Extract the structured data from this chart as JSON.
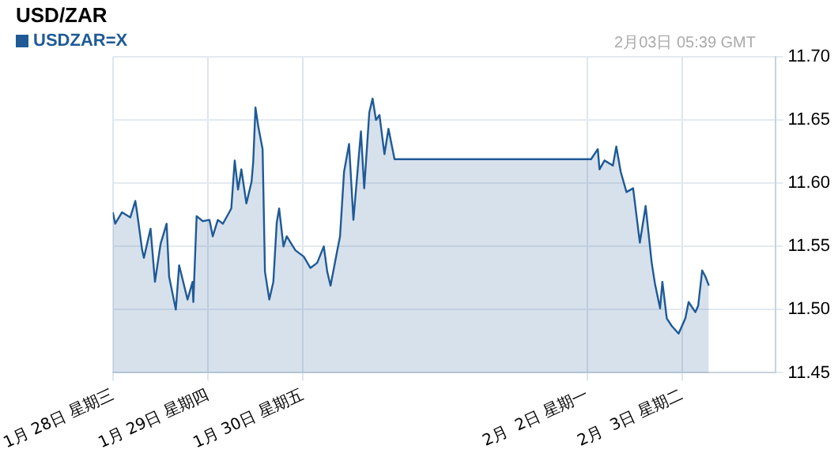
{
  "chart_data": {
    "type": "area",
    "title": "USD/ZAR",
    "annotations": [
      "2月03日 05:39 GMT"
    ],
    "xlim": [
      "--01-28T00:00",
      "--02-03T23:30"
    ],
    "xticks": [
      {
        "value": "--01-28",
        "label": "1月 28日 星期三"
      },
      {
        "value": "--01-29",
        "label": "1月 29日 星期四"
      },
      {
        "value": "--01-30",
        "label": "1月 30日 星期五"
      },
      {
        "value": "--02-02",
        "label": "2月  2日 星期一"
      },
      {
        "value": "--02-03",
        "label": "2月  3日 星期二"
      }
    ],
    "ylim": [
      11.45,
      11.7
    ],
    "yticks": [
      {
        "value": 11.45,
        "label": "11.45"
      },
      {
        "value": 11.5,
        "label": "11.50"
      },
      {
        "value": 11.55,
        "label": "11.55"
      },
      {
        "value": 11.6,
        "label": "11.60"
      },
      {
        "value": 11.65,
        "label": "11.65"
      },
      {
        "value": 11.7,
        "label": "11.70"
      }
    ],
    "grid": true,
    "legend": "top left",
    "series": [
      {
        "name": "USDZAR=X",
        "color": "#1f5a96",
        "x": [
          "--01-28T00:00",
          "--01-28T00:36",
          "--01-28T02:18",
          "--01-28T04:25",
          "--01-28T05:41",
          "--01-28T06:07",
          "--01-28T07:25",
          "--01-28T07:51",
          "--01-28T09:32",
          "--01-28T10:39",
          "--01-28T12:04",
          "--01-28T13:36",
          "--01-28T14:14",
          "--01-28T15:55",
          "--01-28T16:46",
          "--01-28T18:53",
          "--01-28T20:10",
          "--01-28T20:21",
          "--01-28T21:11",
          "--01-28T22:44",
          "--01-29T00:26",
          "--01-29T01:16",
          "--01-29T02:33",
          "--01-29T03:50",
          "--01-29T05:57",
          "--01-29T06:49",
          "--01-29T07:39",
          "--01-29T08:30",
          "--01-29T09:46",
          "--01-29T11:04",
          "--01-29T11:30",
          "--01-29T12:04",
          "--01-29T12:46",
          "--01-29T13:52",
          "--01-29T14:28",
          "--01-29T15:34",
          "--01-29T16:35",
          "--01-29T17:27",
          "--01-29T18:03",
          "--01-29T19:09",
          "--01-29T19:58",
          "--01-29T22:09",
          "--01-30T00:16",
          "--01-30T01:58",
          "--01-30T03:40",
          "--01-30T05:21",
          "--01-30T06:13",
          "--01-30T07:03",
          "--01-30T08:46",
          "--01-30T09:27",
          "--01-30T10:28",
          "--01-30T11:44",
          "--01-30T12:50",
          "--01-30T14:44",
          "--01-30T15:34",
          "--01-30T16:51",
          "--01-30T17:41",
          "--01-30T18:33",
          "--01-30T19:25",
          "--01-30T20:41",
          "--01-30T21:42",
          "--01-30T23:14",
          "--02-02T00:56",
          "--02-02T02:38",
          "--02-02T03:04",
          "--02-02T04:20",
          "--02-02T06:27",
          "--02-02T07:19",
          "--02-02T08:26",
          "--02-02T09:53",
          "--02-02T11:34",
          "--02-02T12:26",
          "--02-02T13:16",
          "--02-02T14:44",
          "--02-02T16:16",
          "--02-02T17:07",
          "--02-02T18:23",
          "--02-02T18:58",
          "--02-02T20:05",
          "--02-02T21:22",
          "--02-02T23:04",
          "--02-03T00:46",
          "--02-03T01:36",
          "--02-03T03:19",
          "--02-03T04:01",
          "--02-03T05:02",
          "--02-03T05:52",
          "--02-03T06:43"
        ],
        "values": [
          11.577,
          11.568,
          11.577,
          11.573,
          11.586,
          11.577,
          11.547,
          11.541,
          11.564,
          11.522,
          11.552,
          11.568,
          11.526,
          11.5,
          11.535,
          11.508,
          11.522,
          11.506,
          11.574,
          11.57,
          11.571,
          11.558,
          11.571,
          11.568,
          11.58,
          11.618,
          11.595,
          11.611,
          11.584,
          11.601,
          11.617,
          11.66,
          11.645,
          11.627,
          11.53,
          11.508,
          11.522,
          11.569,
          11.58,
          11.55,
          11.558,
          11.547,
          11.542,
          11.533,
          11.537,
          11.55,
          11.53,
          11.519,
          11.547,
          11.558,
          11.609,
          11.631,
          11.571,
          11.641,
          11.596,
          11.656,
          11.667,
          11.65,
          11.654,
          11.623,
          11.643,
          11.619,
          11.619,
          11.627,
          11.611,
          11.618,
          11.614,
          11.629,
          11.609,
          11.593,
          11.596,
          11.574,
          11.553,
          11.582,
          11.537,
          11.52,
          11.501,
          11.522,
          11.493,
          11.487,
          11.481,
          11.493,
          11.506,
          11.498,
          11.503,
          11.531,
          11.526,
          11.519
        ]
      }
    ]
  }
}
